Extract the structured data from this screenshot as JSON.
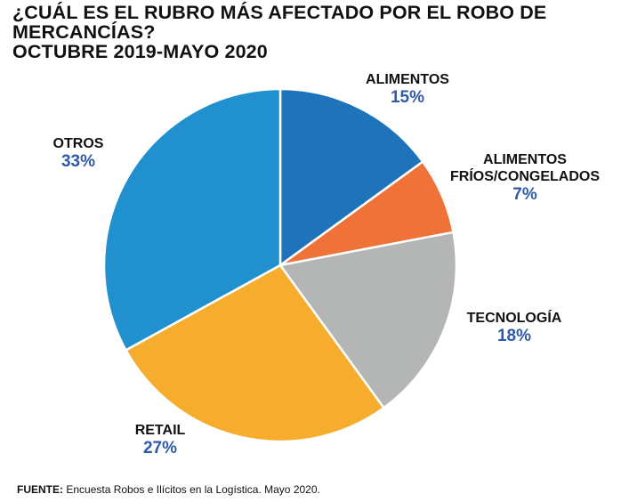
{
  "chart_data": {
    "type": "pie",
    "title": "¿CUÁL ES EL RUBRO MÁS AFECTADO POR EL ROBO DE MERCANCÍAS?",
    "subtitle": "OCTUBRE 2019-MAYO 2020",
    "slices": [
      {
        "label": "ALIMENTOS",
        "value": 15,
        "display": "15%",
        "color": "#1f73bb"
      },
      {
        "label": "ALIMENTOS FRÍOS/CONGELADOS",
        "value": 7,
        "display": "7%",
        "color": "#ef7338"
      },
      {
        "label": "TECNOLOGÍA",
        "value": 18,
        "display": "18%",
        "color": "#b4b5b5"
      },
      {
        "label": "RETAIL",
        "value": 27,
        "display": "27%",
        "color": "#f6ad2d"
      },
      {
        "label": "OTROS",
        "value": 33,
        "display": "33%",
        "color": "#2091ce"
      }
    ],
    "source_label": "FUENTE:",
    "source_text": "Encuesta Robos e Ilícitos en la Logística. Mayo 2020."
  }
}
